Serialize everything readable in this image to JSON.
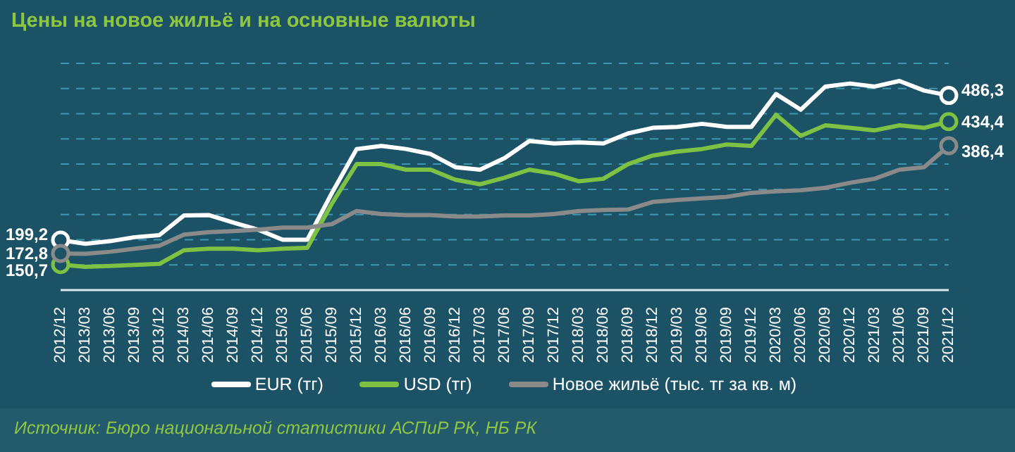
{
  "chart_data": {
    "type": "line",
    "title": "Цены на новое жильё и на основные валюты",
    "annotations": [
      "Источник: Бюро национальной статистики АСПиР РК, НБ РК"
    ],
    "categories": [
      "2012/12",
      "2013/03",
      "2013/06",
      "2013/09",
      "2013/12",
      "2014/03",
      "2014/06",
      "2014/09",
      "2014/12",
      "2015/03",
      "2015/06",
      "2015/09",
      "2015/12",
      "2016/03",
      "2016/06",
      "2016/09",
      "2016/12",
      "2017/03",
      "2017/06",
      "2017/09",
      "2017/12",
      "2018/03",
      "2018/06",
      "2018/09",
      "2018/12",
      "2019/03",
      "2019/06",
      "2019/09",
      "2019/12",
      "2020/03",
      "2020/06",
      "2020/09",
      "2020/12",
      "2021/03",
      "2021/06",
      "2021/09",
      "2021/12"
    ],
    "series": [
      {
        "name": "EUR (тг)",
        "color": "#ffffff",
        "values": [
          199.2,
          192,
          197,
          205,
          209,
          248,
          249,
          234,
          220,
          200,
          200,
          293,
          380,
          386,
          380,
          370,
          344,
          339,
          362,
          396,
          391,
          393,
          391,
          411,
          422,
          424,
          430,
          424,
          424,
          489,
          458,
          504,
          510,
          504,
          515,
          496,
          486.3
        ],
        "value_labels": [
          "199,2",
          null,
          null,
          null,
          null,
          null,
          null,
          null,
          null,
          null,
          null,
          null,
          null,
          null,
          null,
          null,
          null,
          null,
          null,
          null,
          null,
          null,
          null,
          null,
          null,
          null,
          null,
          null,
          null,
          null,
          null,
          null,
          null,
          null,
          null,
          null,
          "486,3"
        ]
      },
      {
        "name": "USD (тг)",
        "color": "#7dc242",
        "values": [
          150.7,
          146,
          148,
          150,
          152,
          179,
          182,
          182,
          179,
          182,
          184,
          272,
          350,
          350,
          339,
          339,
          319,
          310,
          323,
          339,
          331,
          316,
          321,
          350,
          367,
          375,
          380,
          389,
          386,
          448,
          406,
          427,
          422,
          417,
          427,
          422,
          434.4
        ],
        "value_labels": [
          "150,7",
          null,
          null,
          null,
          null,
          null,
          null,
          null,
          null,
          null,
          null,
          null,
          null,
          null,
          null,
          null,
          null,
          null,
          null,
          null,
          null,
          null,
          null,
          null,
          null,
          null,
          null,
          null,
          null,
          null,
          null,
          null,
          null,
          null,
          null,
          null,
          "434,4"
        ]
      },
      {
        "name": "Новое жильё (тыс. тг за кв. м)",
        "color": "#8a8a8a",
        "values": [
          172.8,
          172,
          176,
          182,
          188,
          210,
          215,
          217,
          220,
          224,
          224,
          231,
          257,
          251,
          249,
          249,
          246,
          246,
          248,
          248,
          251,
          257,
          259,
          260,
          275,
          279,
          282,
          285,
          293,
          296,
          298,
          303,
          313,
          321,
          339,
          344,
          386.4
        ],
        "value_labels": [
          "172,8",
          null,
          null,
          null,
          null,
          null,
          null,
          null,
          null,
          null,
          null,
          null,
          null,
          null,
          null,
          null,
          null,
          null,
          null,
          null,
          null,
          null,
          null,
          null,
          null,
          null,
          null,
          null,
          null,
          null,
          null,
          null,
          null,
          null,
          null,
          null,
          "386,4"
        ]
      }
    ],
    "ylim": [
      100,
      550
    ],
    "yticks": [
      {
        "value": 100,
        "label": null
      },
      {
        "value": 150,
        "label": null
      },
      {
        "value": 200,
        "label": null
      },
      {
        "value": 250,
        "label": null
      },
      {
        "value": 300,
        "label": null
      },
      {
        "value": 350,
        "label": null
      },
      {
        "value": 400,
        "label": null
      },
      {
        "value": 450,
        "label": null
      },
      {
        "value": 500,
        "label": null
      },
      {
        "value": 550,
        "label": null
      }
    ],
    "tick_labels": "x",
    "grid": "y",
    "legend": "bottom",
    "line_style": "solid"
  }
}
